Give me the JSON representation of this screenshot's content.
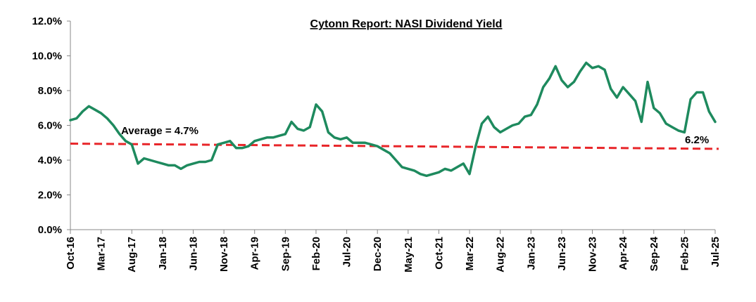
{
  "chart_data": {
    "type": "line",
    "title": "Cytonn Report: NASI Dividend Yield",
    "xlabel": "",
    "ylabel": "",
    "ylim": [
      0,
      12
    ],
    "y_ticks": [
      "0.0%",
      "2.0%",
      "4.0%",
      "6.0%",
      "8.0%",
      "10.0%",
      "12.0%"
    ],
    "x_range": [
      "2016-10",
      "2025-07"
    ],
    "x_ticks": [
      "Oct-16",
      "Mar-17",
      "Aug-17",
      "Jan-18",
      "Jun-18",
      "Nov-18",
      "Apr-19",
      "Sep-19",
      "Feb-20",
      "Jul-20",
      "Dec-20",
      "May-21",
      "Oct-21",
      "Mar-22",
      "Aug-22",
      "Jan-23",
      "Jun-23",
      "Nov-23",
      "Apr-24",
      "Sep-24",
      "Feb-25",
      "Jul-25"
    ],
    "grid": false,
    "series": [
      {
        "name": "",
        "color": "#1e8a5e",
        "points": [
          [
            "2016-10",
            6.3
          ],
          [
            "2016-11",
            6.4
          ],
          [
            "2016-12",
            6.8
          ],
          [
            "2017-01",
            7.1
          ],
          [
            "2017-02",
            6.9
          ],
          [
            "2017-03",
            6.7
          ],
          [
            "2017-04",
            6.4
          ],
          [
            "2017-05",
            6.0
          ],
          [
            "2017-06",
            5.5
          ],
          [
            "2017-07",
            5.1
          ],
          [
            "2017-08",
            4.9
          ],
          [
            "2017-09",
            3.8
          ],
          [
            "2017-10",
            4.1
          ],
          [
            "2017-11",
            4.0
          ],
          [
            "2017-12",
            3.9
          ],
          [
            "2018-01",
            3.8
          ],
          [
            "2018-02",
            3.7
          ],
          [
            "2018-03",
            3.7
          ],
          [
            "2018-04",
            3.5
          ],
          [
            "2018-05",
            3.7
          ],
          [
            "2018-06",
            3.8
          ],
          [
            "2018-07",
            3.9
          ],
          [
            "2018-08",
            3.9
          ],
          [
            "2018-09",
            4.0
          ],
          [
            "2018-10",
            4.9
          ],
          [
            "2018-11",
            5.0
          ],
          [
            "2018-12",
            5.1
          ],
          [
            "2019-01",
            4.7
          ],
          [
            "2019-02",
            4.7
          ],
          [
            "2019-03",
            4.8
          ],
          [
            "2019-04",
            5.1
          ],
          [
            "2019-05",
            5.2
          ],
          [
            "2019-06",
            5.3
          ],
          [
            "2019-07",
            5.3
          ],
          [
            "2019-08",
            5.4
          ],
          [
            "2019-09",
            5.5
          ],
          [
            "2019-10",
            6.2
          ],
          [
            "2019-11",
            5.8
          ],
          [
            "2019-12",
            5.7
          ],
          [
            "2020-01",
            5.9
          ],
          [
            "2020-02",
            7.2
          ],
          [
            "2020-03",
            6.8
          ],
          [
            "2020-04",
            5.6
          ],
          [
            "2020-05",
            5.3
          ],
          [
            "2020-06",
            5.2
          ],
          [
            "2020-07",
            5.3
          ],
          [
            "2020-08",
            5.0
          ],
          [
            "2020-09",
            5.0
          ],
          [
            "2020-10",
            5.0
          ],
          [
            "2020-11",
            4.9
          ],
          [
            "2020-12",
            4.8
          ],
          [
            "2021-01",
            4.6
          ],
          [
            "2021-02",
            4.4
          ],
          [
            "2021-03",
            4.0
          ],
          [
            "2021-04",
            3.6
          ],
          [
            "2021-05",
            3.5
          ],
          [
            "2021-06",
            3.4
          ],
          [
            "2021-07",
            3.2
          ],
          [
            "2021-08",
            3.1
          ],
          [
            "2021-09",
            3.2
          ],
          [
            "2021-10",
            3.3
          ],
          [
            "2021-11",
            3.5
          ],
          [
            "2021-12",
            3.4
          ],
          [
            "2022-01",
            3.6
          ],
          [
            "2022-02",
            3.8
          ],
          [
            "2022-03",
            3.2
          ],
          [
            "2022-04",
            4.8
          ],
          [
            "2022-05",
            6.1
          ],
          [
            "2022-06",
            6.5
          ],
          [
            "2022-07",
            5.9
          ],
          [
            "2022-08",
            5.6
          ],
          [
            "2022-09",
            5.8
          ],
          [
            "2022-10",
            6.0
          ],
          [
            "2022-11",
            6.1
          ],
          [
            "2022-12",
            6.5
          ],
          [
            "2023-01",
            6.6
          ],
          [
            "2023-02",
            7.2
          ],
          [
            "2023-03",
            8.2
          ],
          [
            "2023-04",
            8.7
          ],
          [
            "2023-05",
            9.4
          ],
          [
            "2023-06",
            8.6
          ],
          [
            "2023-07",
            8.2
          ],
          [
            "2023-08",
            8.5
          ],
          [
            "2023-09",
            9.1
          ],
          [
            "2023-10",
            9.6
          ],
          [
            "2023-11",
            9.3
          ],
          [
            "2023-12",
            9.4
          ],
          [
            "2024-01",
            9.2
          ],
          [
            "2024-02",
            8.1
          ],
          [
            "2024-03",
            7.6
          ],
          [
            "2024-04",
            8.2
          ],
          [
            "2024-05",
            7.8
          ],
          [
            "2024-06",
            7.4
          ],
          [
            "2024-07",
            6.2
          ],
          [
            "2024-08",
            8.5
          ],
          [
            "2024-09",
            7.0
          ],
          [
            "2024-10",
            6.7
          ],
          [
            "2024-11",
            6.1
          ],
          [
            "2024-12",
            5.9
          ],
          [
            "2025-01",
            5.7
          ],
          [
            "2025-02",
            5.6
          ],
          [
            "2025-03",
            7.5
          ],
          [
            "2025-04",
            7.9
          ],
          [
            "2025-05",
            7.9
          ],
          [
            "2025-06",
            6.8
          ],
          [
            "2025-07",
            6.2
          ]
        ]
      }
    ],
    "average_line": {
      "value": 4.7,
      "label": "Average = 4.7%",
      "color": "#e8262a"
    },
    "annotations": [
      {
        "text": "6.2%"
      }
    ]
  }
}
